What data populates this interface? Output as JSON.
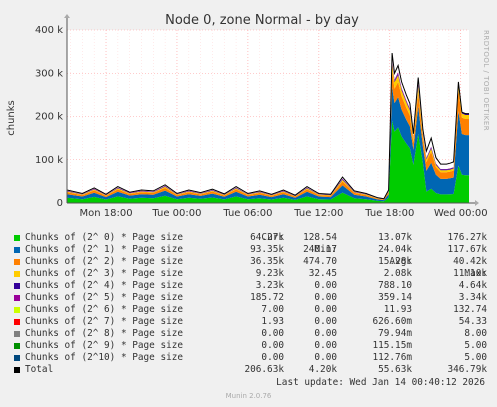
{
  "chart_data": {
    "type": "area",
    "title": "Node 0, zone Normal - by day",
    "ylabel": "chunks",
    "ylim": [
      0,
      400000
    ],
    "yticks": [
      0,
      100000,
      200000,
      300000,
      400000
    ],
    "ytick_labels": [
      "0",
      "100 k",
      "200 k",
      "300 k",
      "400 k"
    ],
    "xtick_labels": [
      "Mon 18:00",
      "Tue 00:00",
      "Tue 06:00",
      "Tue 12:00",
      "Tue 18:00",
      "Wed 00:00"
    ],
    "xtick_hours": [
      18,
      24,
      30,
      36,
      42,
      48
    ],
    "x_range_hours": [
      14.7,
      48.7
    ],
    "grid": true,
    "side_text": "RRDTOOL / TOBI OETIKER",
    "total_series": {
      "hours": [
        14.7,
        16,
        17,
        18,
        19,
        20,
        21,
        22,
        23,
        24,
        25,
        26,
        27,
        28,
        29,
        30,
        31,
        32,
        33,
        34,
        35,
        36,
        37,
        38,
        39,
        40,
        41,
        41.5,
        41.9,
        42.2,
        42.4,
        42.7,
        43.0,
        43.4,
        43.7,
        44.0,
        44.4,
        44.8,
        45.1,
        45.5,
        45.9,
        46.3,
        46.8,
        47.1,
        47.4,
        47.8,
        48.1,
        48.4,
        48.7
      ],
      "values": [
        30000,
        22000,
        35000,
        20000,
        38000,
        25000,
        30000,
        28000,
        42000,
        22000,
        30000,
        24000,
        32000,
        21000,
        38000,
        22000,
        28000,
        20000,
        30000,
        18000,
        38000,
        22000,
        20000,
        60000,
        28000,
        22000,
        12000,
        10000,
        30000,
        346800,
        300000,
        318000,
        280000,
        250000,
        230000,
        160000,
        290000,
        170000,
        120000,
        150000,
        105000,
        90000,
        90000,
        92000,
        95000,
        280000,
        210000,
        206600,
        206600
      ]
    },
    "series": [
      {
        "name": "Chunks of (2^ 0) * Page size",
        "color": "#00cc00",
        "cur": "64.27k",
        "min": "128.54",
        "avg": "13.07k",
        "max": "176.27k"
      },
      {
        "name": "Chunks of (2^ 1) * Page size",
        "color": "#0066b3",
        "cur": "93.35k",
        "min": "240.17",
        "avg": "24.04k",
        "max": "117.67k"
      },
      {
        "name": "Chunks of (2^ 2) * Page size",
        "color": "#ff8000",
        "cur": "36.35k",
        "min": "474.70",
        "avg": "15.28k",
        "max": "40.42k"
      },
      {
        "name": "Chunks of (2^ 3) * Page size",
        "color": "#ffcc00",
        "cur": "9.23k",
        "min": "32.45",
        "avg": "2.08k",
        "max": "11.10k"
      },
      {
        "name": "Chunks of (2^ 4) * Page size",
        "color": "#330099",
        "cur": "3.23k",
        "min": "0.00",
        "avg": "788.10",
        "max": "4.64k"
      },
      {
        "name": "Chunks of (2^ 5) * Page size",
        "color": "#990099",
        "cur": "185.72",
        "min": "0.00",
        "avg": "359.14",
        "max": "3.34k"
      },
      {
        "name": "Chunks of (2^ 6) * Page size",
        "color": "#ccff00",
        "cur": "7.00",
        "min": "0.00",
        "avg": "11.93",
        "max": "132.74"
      },
      {
        "name": "Chunks of (2^ 7) * Page size",
        "color": "#ff0000",
        "cur": "1.93",
        "min": "0.00",
        "avg": "626.60m",
        "max": "54.33"
      },
      {
        "name": "Chunks of (2^ 8) * Page size",
        "color": "#808080",
        "cur": "0.00",
        "min": "0.00",
        "avg": "79.94m",
        "max": "8.00"
      },
      {
        "name": "Chunks of (2^ 9) * Page size",
        "color": "#008f00",
        "cur": "0.00",
        "min": "0.00",
        "avg": "115.15m",
        "max": "5.00"
      },
      {
        "name": "Chunks of (2^10) * Page size",
        "color": "#00487d",
        "cur": "0.00",
        "min": "0.00",
        "avg": "112.76m",
        "max": "5.00"
      },
      {
        "name": "Total",
        "color": "#000000",
        "cur": "206.63k",
        "min": "4.20k",
        "avg": "55.63k",
        "max": "346.79k"
      }
    ],
    "legend_headers": {
      "cur": "Cur:",
      "min": "Min:",
      "avg": "Avg:",
      "max": "Max:"
    }
  },
  "footer": {
    "last_update": "Last update: Wed Jan 14 00:40:12 2026",
    "munin": "Munin 2.0.76"
  }
}
